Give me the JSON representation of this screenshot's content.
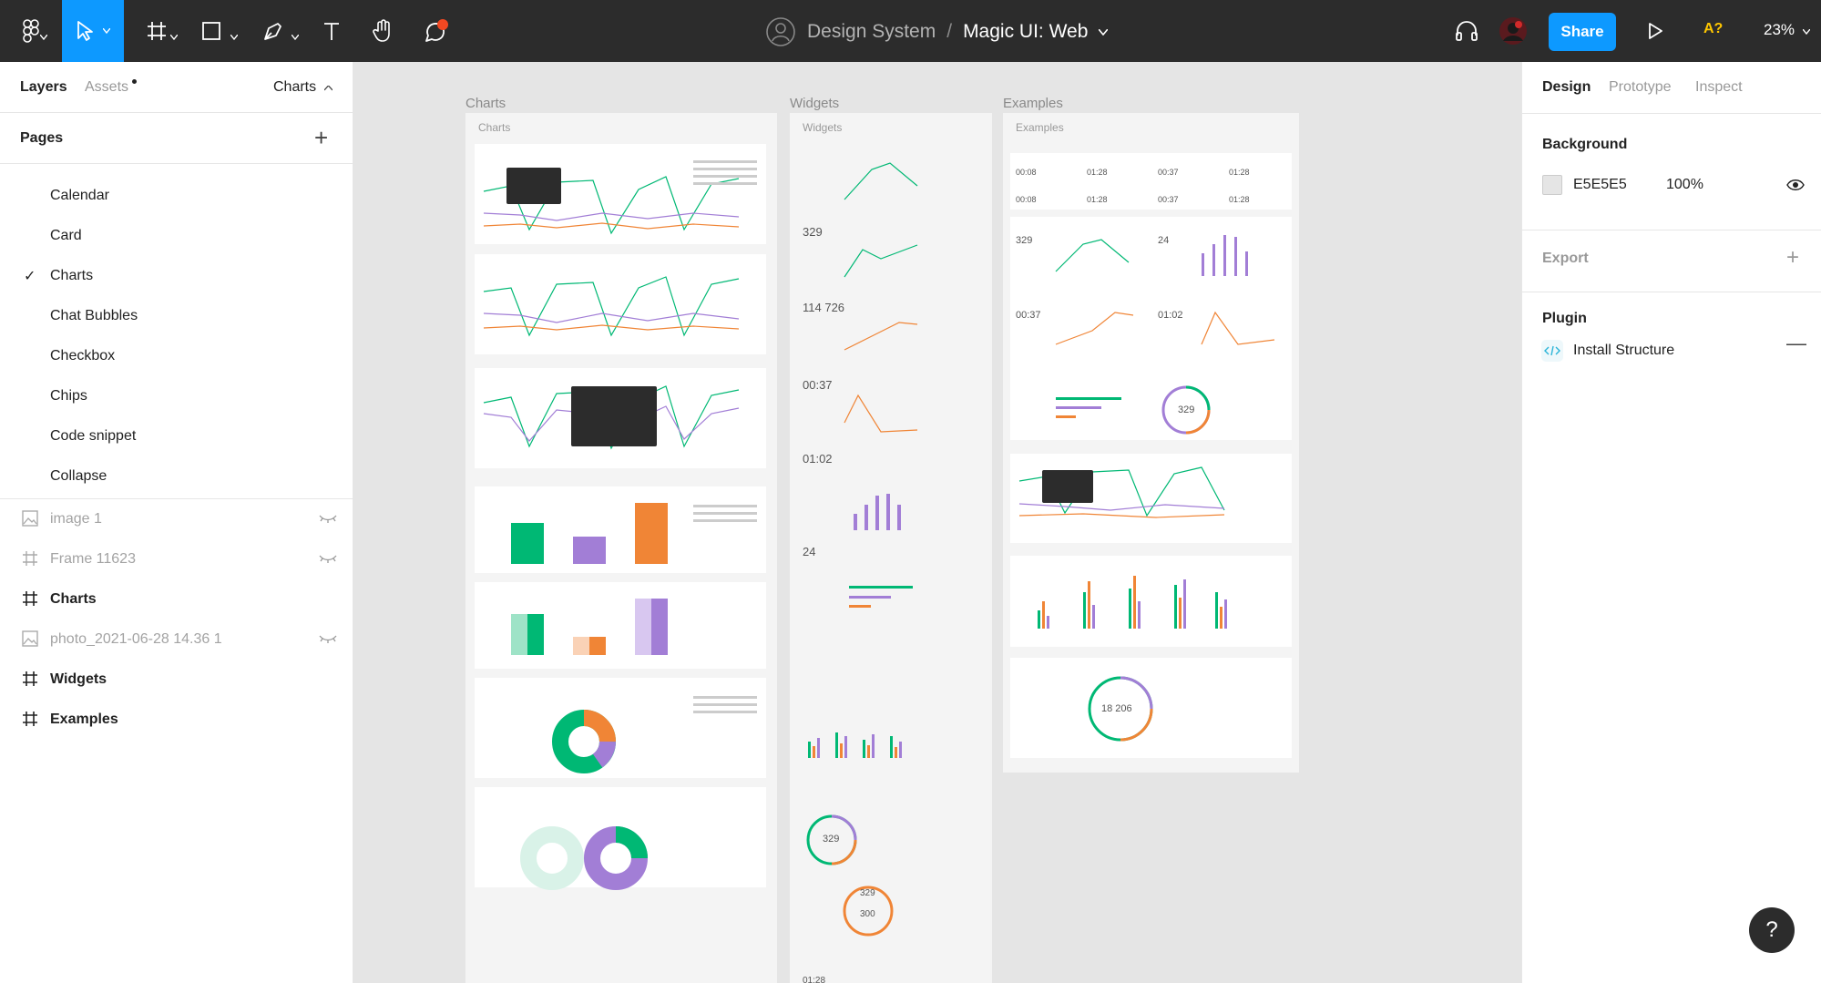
{
  "toolbar": {
    "breadcrumb_project": "Design System",
    "breadcrumb_separator": "/",
    "file_name": "Magic UI: Web",
    "share_label": "Share",
    "font_warning": "A?",
    "zoom_level": "23%",
    "colors": {
      "background": "#2c2c2c",
      "accent": "#0d99ff",
      "notification": "#f24822"
    },
    "icons": [
      "figma-menu-icon",
      "move-tool-icon",
      "frame-tool-icon",
      "shape-tool-icon",
      "pen-tool-icon",
      "text-tool-icon",
      "hand-tool-icon",
      "comment-tool-icon",
      "team-avatar-icon",
      "audio-headphones-icon",
      "user-avatar",
      "play-icon"
    ]
  },
  "left_panel": {
    "tab_layers": "Layers",
    "tab_assets": "Assets",
    "current_page": "Charts",
    "pages_title": "Pages",
    "pages": [
      {
        "label": "Calendar",
        "selected": false
      },
      {
        "label": "Card",
        "selected": false
      },
      {
        "label": "Charts",
        "selected": true
      },
      {
        "label": "Chat Bubbles",
        "selected": false
      },
      {
        "label": "Checkbox",
        "selected": false
      },
      {
        "label": "Chips",
        "selected": false
      },
      {
        "label": "Code snippet",
        "selected": false
      },
      {
        "label": "Collapse",
        "selected": false
      }
    ],
    "layers": [
      {
        "label": "image 1",
        "type": "image",
        "hidden": true
      },
      {
        "label": "Frame 11623",
        "type": "frame",
        "hidden": true
      },
      {
        "label": "Charts",
        "type": "frame",
        "hidden": false
      },
      {
        "label": "photo_2021-06-28 14.36 1",
        "type": "image",
        "hidden": true
      },
      {
        "label": "Widgets",
        "type": "frame",
        "hidden": false
      },
      {
        "label": "Examples",
        "type": "frame",
        "hidden": false
      }
    ]
  },
  "canvas": {
    "frames": [
      {
        "title": "Charts",
        "inner_title": "Charts"
      },
      {
        "title": "Widgets",
        "inner_title": "Widgets"
      },
      {
        "title": "Examples",
        "inner_title": "Examples"
      }
    ],
    "chart_colors": {
      "green": "#00b874",
      "purple": "#a27ed6",
      "orange": "#f08536"
    },
    "widget_values": [
      "329",
      "114 726",
      "00:37",
      "01:02",
      "24",
      "329",
      "329",
      "300",
      "01:28"
    ],
    "example_values": [
      "00:08",
      "01:28",
      "00:37",
      "01:28",
      "00:08",
      "01:28",
      "00:37",
      "01:28",
      "329",
      "24",
      "00:37",
      "01:02",
      "329",
      "18 206"
    ]
  },
  "right_panel": {
    "tab_design": "Design",
    "tab_prototype": "Prototype",
    "tab_inspect": "Inspect",
    "background_title": "Background",
    "background_hex": "E5E5E5",
    "background_opacity": "100%",
    "export_title": "Export",
    "plugin_title": "Plugin",
    "plugin_item": "Install Structure"
  },
  "help_label": "?"
}
